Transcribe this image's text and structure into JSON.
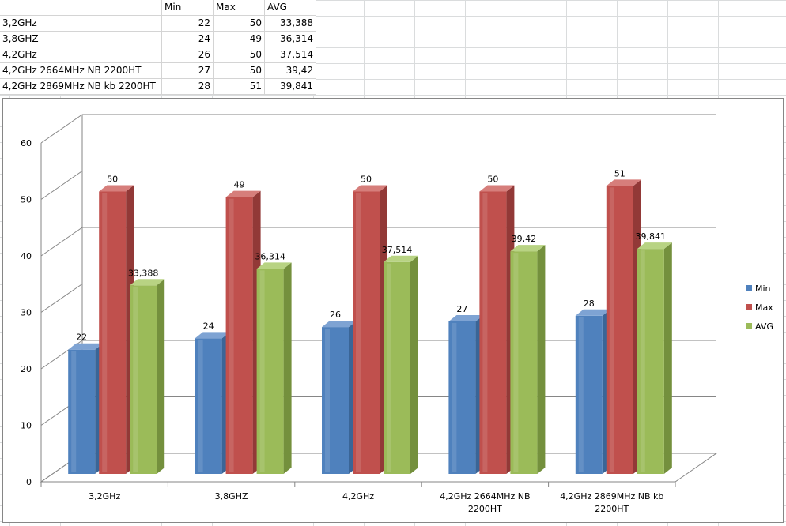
{
  "table": {
    "headers": [
      "",
      "Min",
      "Max",
      "AVG"
    ],
    "rows": [
      [
        "3,2GHz",
        "22",
        "50",
        "33,388"
      ],
      [
        "3,8GHZ",
        "24",
        "49",
        "36,314"
      ],
      [
        "4,2GHz",
        "26",
        "50",
        "37,514"
      ],
      [
        "4,2GHz 2664MHz NB 2200HT",
        "27",
        "50",
        "39,42"
      ],
      [
        "4,2GHz 2869MHz NB kb 2200HT",
        "28",
        "51",
        "39,841"
      ]
    ]
  },
  "chart_data": {
    "type": "bar",
    "title": "",
    "xlabel": "",
    "ylabel": "",
    "ylim": [
      0,
      60
    ],
    "yticks": [
      0,
      10,
      20,
      30,
      40,
      50,
      60
    ],
    "grid": true,
    "legend_position": "right",
    "categories": [
      [
        "3,2GHz"
      ],
      [
        "3,8GHZ"
      ],
      [
        "4,2GHz"
      ],
      [
        "4,2GHz 2664MHz NB",
        "2200HT"
      ],
      [
        "4,2GHz 2869MHz NB kb",
        "2200HT"
      ]
    ],
    "series": [
      {
        "name": "Min",
        "color": "#4f81bd",
        "side": "#3a6597",
        "top": "#7ea3d3",
        "values": [
          22,
          24,
          26,
          27,
          28
        ],
        "labels": [
          "22",
          "24",
          "26",
          "27",
          "28"
        ]
      },
      {
        "name": "Max",
        "color": "#c0504d",
        "side": "#923937",
        "top": "#d67e7b",
        "values": [
          50,
          49,
          50,
          50,
          51
        ],
        "labels": [
          "50",
          "49",
          "50",
          "50",
          "51"
        ]
      },
      {
        "name": "AVG",
        "color": "#9bbb59",
        "side": "#74903d",
        "top": "#b8d383",
        "values": [
          33.388,
          36.314,
          37.514,
          39.42,
          39.841
        ],
        "labels": [
          "33,388",
          "36,314",
          "37,514",
          "39,42",
          "39,841"
        ]
      }
    ]
  }
}
